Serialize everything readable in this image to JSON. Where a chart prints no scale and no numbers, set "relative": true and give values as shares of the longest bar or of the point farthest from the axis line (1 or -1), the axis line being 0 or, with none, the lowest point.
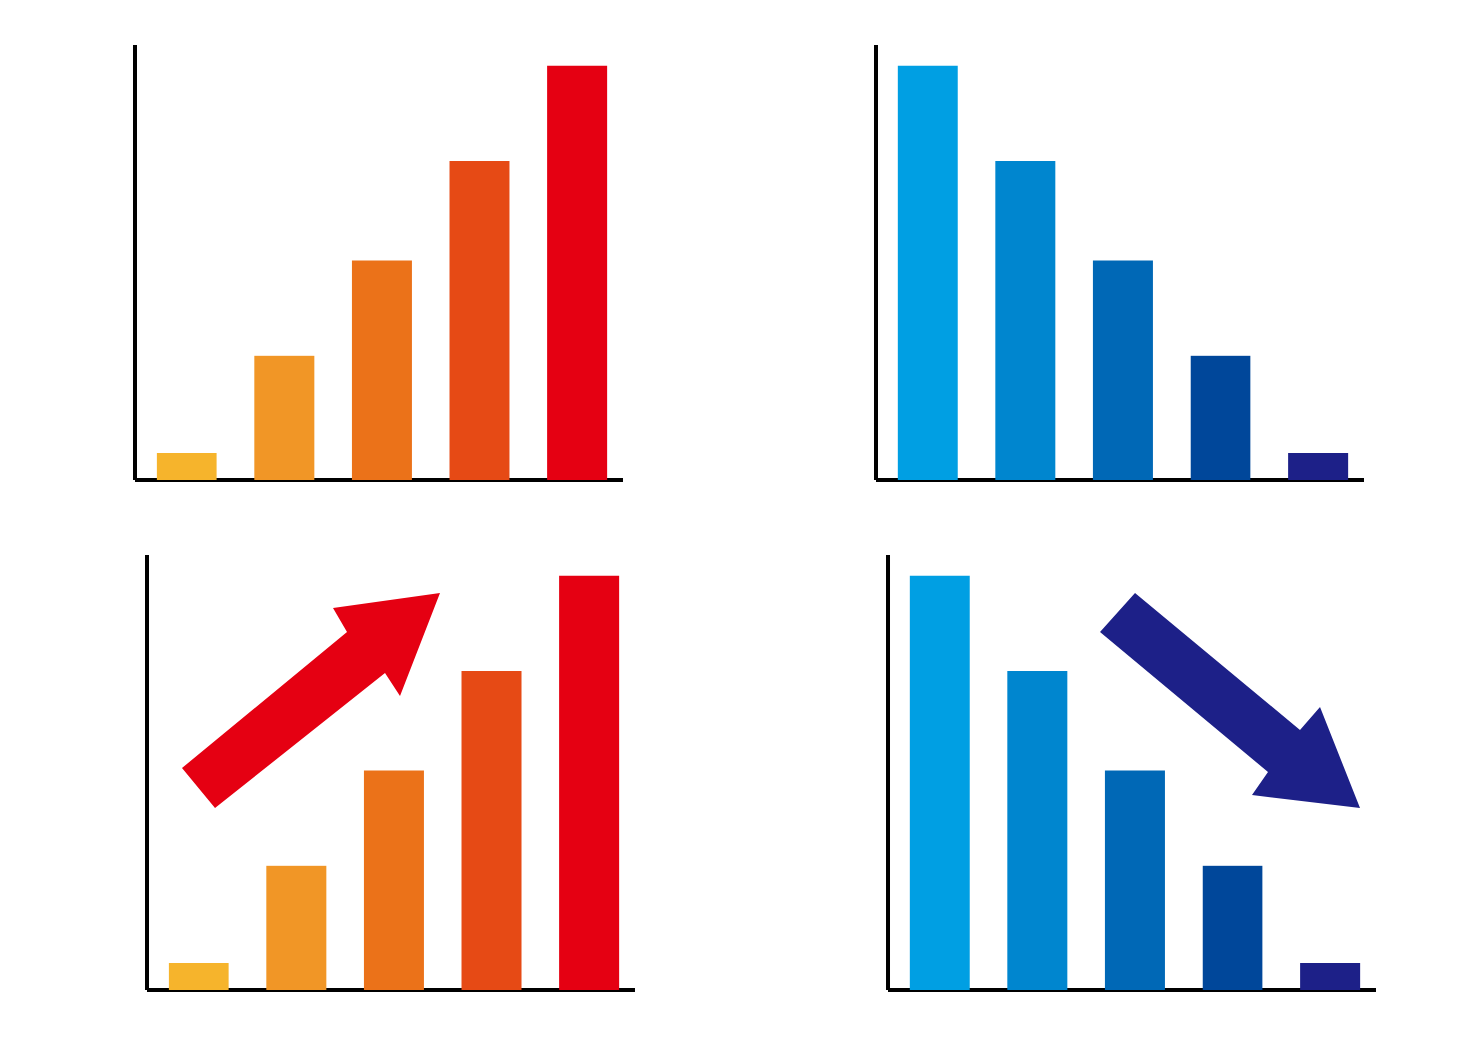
{
  "chart_data": [
    {
      "type": "bar",
      "relative": true,
      "categories": [
        null,
        null,
        null,
        null,
        null
      ],
      "values": [
        0.065,
        0.3,
        0.53,
        0.77,
        1
      ],
      "colors": [
        "#f6b42c",
        "#f19626",
        "#eb7219",
        "#e64a15",
        "#e50012"
      ]
    },
    {
      "type": "bar",
      "relative": true,
      "categories": [
        null,
        null,
        null,
        null,
        null
      ],
      "values": [
        1,
        0.77,
        0.53,
        0.3,
        0.065
      ],
      "colors": [
        "#009fe3",
        "#0086cf",
        "#0068b6",
        "#00479a",
        "#1d2088"
      ]
    },
    {
      "type": "bar",
      "relative": true,
      "categories": [
        null,
        null,
        null,
        null,
        null
      ],
      "values": [
        0.065,
        0.3,
        0.53,
        0.77,
        1
      ],
      "colors": [
        "#f6b42c",
        "#f19626",
        "#eb7219",
        "#e64a15",
        "#e50012"
      ]
    },
    {
      "type": "bar",
      "relative": true,
      "categories": [
        null,
        null,
        null,
        null,
        null
      ],
      "values": [
        1,
        0.77,
        0.53,
        0.3,
        0.065
      ],
      "colors": [
        "#009fe3",
        "#0086cf",
        "#0068b6",
        "#00479a",
        "#1d2088"
      ]
    }
  ]
}
